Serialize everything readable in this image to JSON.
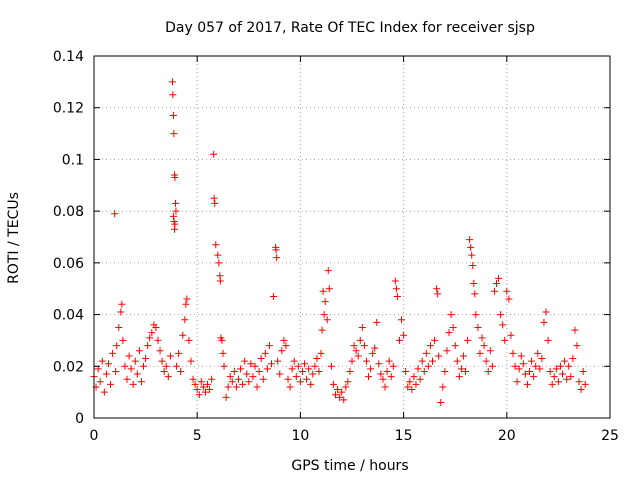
{
  "chart_data": {
    "type": "scatter",
    "title": "Day 057 of 2017, Rate Of TEC Index for receiver sjsp",
    "xlabel": "GPS time / hours",
    "ylabel": "ROTI / TECUs",
    "xlim": [
      0,
      25
    ],
    "ylim": [
      0,
      0.14
    ],
    "xticks": [
      "0",
      "5",
      "10",
      "15",
      "20",
      "25"
    ],
    "yticks": [
      "0",
      "0.02",
      "0.04",
      "0.06",
      "0.08",
      "0.1",
      "0.12",
      "0.14"
    ],
    "xtick_values": [
      0,
      5,
      10,
      15,
      20,
      25
    ],
    "ytick_values": [
      0,
      0.02,
      0.04,
      0.06,
      0.08,
      0.1,
      0.12,
      0.14
    ],
    "grid": true,
    "marker": "+",
    "color": "#ff0000",
    "series": [
      {
        "name": "ROTI",
        "points": [
          [
            0.0,
            0.016
          ],
          [
            0.1,
            0.012
          ],
          [
            0.2,
            0.019
          ],
          [
            0.3,
            0.014
          ],
          [
            0.4,
            0.022
          ],
          [
            0.5,
            0.01
          ],
          [
            0.6,
            0.017
          ],
          [
            0.7,
            0.021
          ],
          [
            0.8,
            0.013
          ],
          [
            0.9,
            0.025
          ],
          [
            1.0,
            0.079
          ],
          [
            1.05,
            0.018
          ],
          [
            1.1,
            0.028
          ],
          [
            1.2,
            0.035
          ],
          [
            1.3,
            0.041
          ],
          [
            1.35,
            0.044
          ],
          [
            1.4,
            0.03
          ],
          [
            1.5,
            0.02
          ],
          [
            1.6,
            0.015
          ],
          [
            1.7,
            0.024
          ],
          [
            1.8,
            0.019
          ],
          [
            1.9,
            0.013
          ],
          [
            2.0,
            0.022
          ],
          [
            2.1,
            0.017
          ],
          [
            2.2,
            0.026
          ],
          [
            2.3,
            0.014
          ],
          [
            2.4,
            0.02
          ],
          [
            2.5,
            0.023
          ],
          [
            2.6,
            0.028
          ],
          [
            2.7,
            0.031
          ],
          [
            2.8,
            0.033
          ],
          [
            2.9,
            0.036
          ],
          [
            3.0,
            0.035
          ],
          [
            3.1,
            0.03
          ],
          [
            3.2,
            0.026
          ],
          [
            3.3,
            0.022
          ],
          [
            3.4,
            0.018
          ],
          [
            3.5,
            0.02
          ],
          [
            3.6,
            0.016
          ],
          [
            3.7,
            0.024
          ],
          [
            3.8,
            0.13
          ],
          [
            3.82,
            0.125
          ],
          [
            3.85,
            0.117
          ],
          [
            3.87,
            0.11
          ],
          [
            3.9,
            0.094
          ],
          [
            3.92,
            0.093
          ],
          [
            3.95,
            0.083
          ],
          [
            3.97,
            0.08
          ],
          [
            3.85,
            0.078
          ],
          [
            3.88,
            0.076
          ],
          [
            3.9,
            0.073
          ],
          [
            3.92,
            0.075
          ],
          [
            4.0,
            0.02
          ],
          [
            4.1,
            0.025
          ],
          [
            4.2,
            0.018
          ],
          [
            4.3,
            0.032
          ],
          [
            4.4,
            0.038
          ],
          [
            4.45,
            0.044
          ],
          [
            4.5,
            0.046
          ],
          [
            4.6,
            0.03
          ],
          [
            4.7,
            0.022
          ],
          [
            4.8,
            0.015
          ],
          [
            4.9,
            0.013
          ],
          [
            5.0,
            0.011
          ],
          [
            5.1,
            0.009
          ],
          [
            5.2,
            0.014
          ],
          [
            5.3,
            0.012
          ],
          [
            5.4,
            0.01
          ],
          [
            5.5,
            0.013
          ],
          [
            5.6,
            0.011
          ],
          [
            5.7,
            0.015
          ],
          [
            5.8,
            0.102
          ],
          [
            5.82,
            0.085
          ],
          [
            5.85,
            0.083
          ],
          [
            5.9,
            0.067
          ],
          [
            6.0,
            0.063
          ],
          [
            6.05,
            0.06
          ],
          [
            6.1,
            0.055
          ],
          [
            6.12,
            0.053
          ],
          [
            6.15,
            0.031
          ],
          [
            6.2,
            0.03
          ],
          [
            6.25,
            0.025
          ],
          [
            6.3,
            0.02
          ],
          [
            6.4,
            0.008
          ],
          [
            6.5,
            0.012
          ],
          [
            6.6,
            0.016
          ],
          [
            6.7,
            0.014
          ],
          [
            6.8,
            0.018
          ],
          [
            6.9,
            0.012
          ],
          [
            7.0,
            0.015
          ],
          [
            7.1,
            0.019
          ],
          [
            7.2,
            0.013
          ],
          [
            7.3,
            0.022
          ],
          [
            7.4,
            0.017
          ],
          [
            7.5,
            0.014
          ],
          [
            7.6,
            0.021
          ],
          [
            7.7,
            0.016
          ],
          [
            7.8,
            0.02
          ],
          [
            7.9,
            0.012
          ],
          [
            8.0,
            0.018
          ],
          [
            8.1,
            0.023
          ],
          [
            8.2,
            0.015
          ],
          [
            8.3,
            0.025
          ],
          [
            8.4,
            0.019
          ],
          [
            8.5,
            0.028
          ],
          [
            8.6,
            0.021
          ],
          [
            8.7,
            0.047
          ],
          [
            8.8,
            0.066
          ],
          [
            8.82,
            0.065
          ],
          [
            8.85,
            0.062
          ],
          [
            8.9,
            0.022
          ],
          [
            9.0,
            0.017
          ],
          [
            9.1,
            0.026
          ],
          [
            9.2,
            0.03
          ],
          [
            9.3,
            0.028
          ],
          [
            9.4,
            0.015
          ],
          [
            9.5,
            0.012
          ],
          [
            9.6,
            0.019
          ],
          [
            9.7,
            0.022
          ],
          [
            9.8,
            0.016
          ],
          [
            9.9,
            0.02
          ],
          [
            10.0,
            0.014
          ],
          [
            10.1,
            0.018
          ],
          [
            10.2,
            0.021
          ],
          [
            10.3,
            0.015
          ],
          [
            10.4,
            0.019
          ],
          [
            10.5,
            0.013
          ],
          [
            10.6,
            0.017
          ],
          [
            10.7,
            0.02
          ],
          [
            10.8,
            0.023
          ],
          [
            10.9,
            0.018
          ],
          [
            11.0,
            0.025
          ],
          [
            11.05,
            0.034
          ],
          [
            11.1,
            0.049
          ],
          [
            11.15,
            0.04
          ],
          [
            11.2,
            0.045
          ],
          [
            11.3,
            0.038
          ],
          [
            11.35,
            0.057
          ],
          [
            11.4,
            0.05
          ],
          [
            11.5,
            0.02
          ],
          [
            11.6,
            0.013
          ],
          [
            11.7,
            0.009
          ],
          [
            11.8,
            0.011
          ],
          [
            11.9,
            0.008
          ],
          [
            12.0,
            0.01
          ],
          [
            12.1,
            0.007
          ],
          [
            12.2,
            0.012
          ],
          [
            12.3,
            0.014
          ],
          [
            12.4,
            0.018
          ],
          [
            12.5,
            0.022
          ],
          [
            12.6,
            0.028
          ],
          [
            12.7,
            0.026
          ],
          [
            12.8,
            0.024
          ],
          [
            12.9,
            0.03
          ],
          [
            13.0,
            0.035
          ],
          [
            13.1,
            0.028
          ],
          [
            13.2,
            0.022
          ],
          [
            13.3,
            0.016
          ],
          [
            13.4,
            0.019
          ],
          [
            13.5,
            0.025
          ],
          [
            13.6,
            0.027
          ],
          [
            13.7,
            0.037
          ],
          [
            13.8,
            0.021
          ],
          [
            13.9,
            0.017
          ],
          [
            14.0,
            0.015
          ],
          [
            14.1,
            0.012
          ],
          [
            14.2,
            0.018
          ],
          [
            14.3,
            0.022
          ],
          [
            14.4,
            0.016
          ],
          [
            14.5,
            0.02
          ],
          [
            14.6,
            0.053
          ],
          [
            14.65,
            0.05
          ],
          [
            14.7,
            0.047
          ],
          [
            14.8,
            0.03
          ],
          [
            14.9,
            0.038
          ],
          [
            15.0,
            0.032
          ],
          [
            15.1,
            0.018
          ],
          [
            15.2,
            0.012
          ],
          [
            15.3,
            0.014
          ],
          [
            15.4,
            0.011
          ],
          [
            15.5,
            0.016
          ],
          [
            15.6,
            0.013
          ],
          [
            15.7,
            0.019
          ],
          [
            15.8,
            0.015
          ],
          [
            15.9,
            0.022
          ],
          [
            16.0,
            0.018
          ],
          [
            16.1,
            0.025
          ],
          [
            16.2,
            0.02
          ],
          [
            16.3,
            0.028
          ],
          [
            16.4,
            0.022
          ],
          [
            16.5,
            0.03
          ],
          [
            16.6,
            0.05
          ],
          [
            16.65,
            0.048
          ],
          [
            16.7,
            0.024
          ],
          [
            16.8,
            0.006
          ],
          [
            16.9,
            0.012
          ],
          [
            17.0,
            0.018
          ],
          [
            17.1,
            0.026
          ],
          [
            17.2,
            0.033
          ],
          [
            17.3,
            0.04
          ],
          [
            17.4,
            0.035
          ],
          [
            17.5,
            0.028
          ],
          [
            17.6,
            0.022
          ],
          [
            17.7,
            0.016
          ],
          [
            17.8,
            0.019
          ],
          [
            17.9,
            0.024
          ],
          [
            18.0,
            0.018
          ],
          [
            18.1,
            0.03
          ],
          [
            18.2,
            0.069
          ],
          [
            18.25,
            0.066
          ],
          [
            18.3,
            0.063
          ],
          [
            18.35,
            0.059
          ],
          [
            18.4,
            0.052
          ],
          [
            18.45,
            0.048
          ],
          [
            18.5,
            0.04
          ],
          [
            18.6,
            0.035
          ],
          [
            18.7,
            0.025
          ],
          [
            18.8,
            0.031
          ],
          [
            18.9,
            0.028
          ],
          [
            19.0,
            0.022
          ],
          [
            19.1,
            0.018
          ],
          [
            19.2,
            0.026
          ],
          [
            19.3,
            0.02
          ],
          [
            19.4,
            0.049
          ],
          [
            19.5,
            0.052
          ],
          [
            19.6,
            0.054
          ],
          [
            19.7,
            0.04
          ],
          [
            19.8,
            0.036
          ],
          [
            19.9,
            0.03
          ],
          [
            20.0,
            0.049
          ],
          [
            20.1,
            0.046
          ],
          [
            20.2,
            0.032
          ],
          [
            20.3,
            0.025
          ],
          [
            20.4,
            0.02
          ],
          [
            20.5,
            0.014
          ],
          [
            20.6,
            0.019
          ],
          [
            20.7,
            0.024
          ],
          [
            20.8,
            0.021
          ],
          [
            20.9,
            0.017
          ],
          [
            21.0,
            0.013
          ],
          [
            21.1,
            0.018
          ],
          [
            21.2,
            0.022
          ],
          [
            21.3,
            0.016
          ],
          [
            21.4,
            0.02
          ],
          [
            21.5,
            0.025
          ],
          [
            21.6,
            0.019
          ],
          [
            21.7,
            0.023
          ],
          [
            21.8,
            0.037
          ],
          [
            21.9,
            0.041
          ],
          [
            22.0,
            0.03
          ],
          [
            22.1,
            0.018
          ],
          [
            22.2,
            0.013
          ],
          [
            22.3,
            0.016
          ],
          [
            22.4,
            0.019
          ],
          [
            22.5,
            0.014
          ],
          [
            22.6,
            0.02
          ],
          [
            22.7,
            0.017
          ],
          [
            22.8,
            0.022
          ],
          [
            22.9,
            0.015
          ],
          [
            23.0,
            0.02
          ],
          [
            23.1,
            0.016
          ],
          [
            23.2,
            0.023
          ],
          [
            23.3,
            0.034
          ],
          [
            23.4,
            0.028
          ],
          [
            23.5,
            0.014
          ],
          [
            23.6,
            0.011
          ],
          [
            23.7,
            0.018
          ],
          [
            23.8,
            0.013
          ]
        ]
      }
    ]
  }
}
